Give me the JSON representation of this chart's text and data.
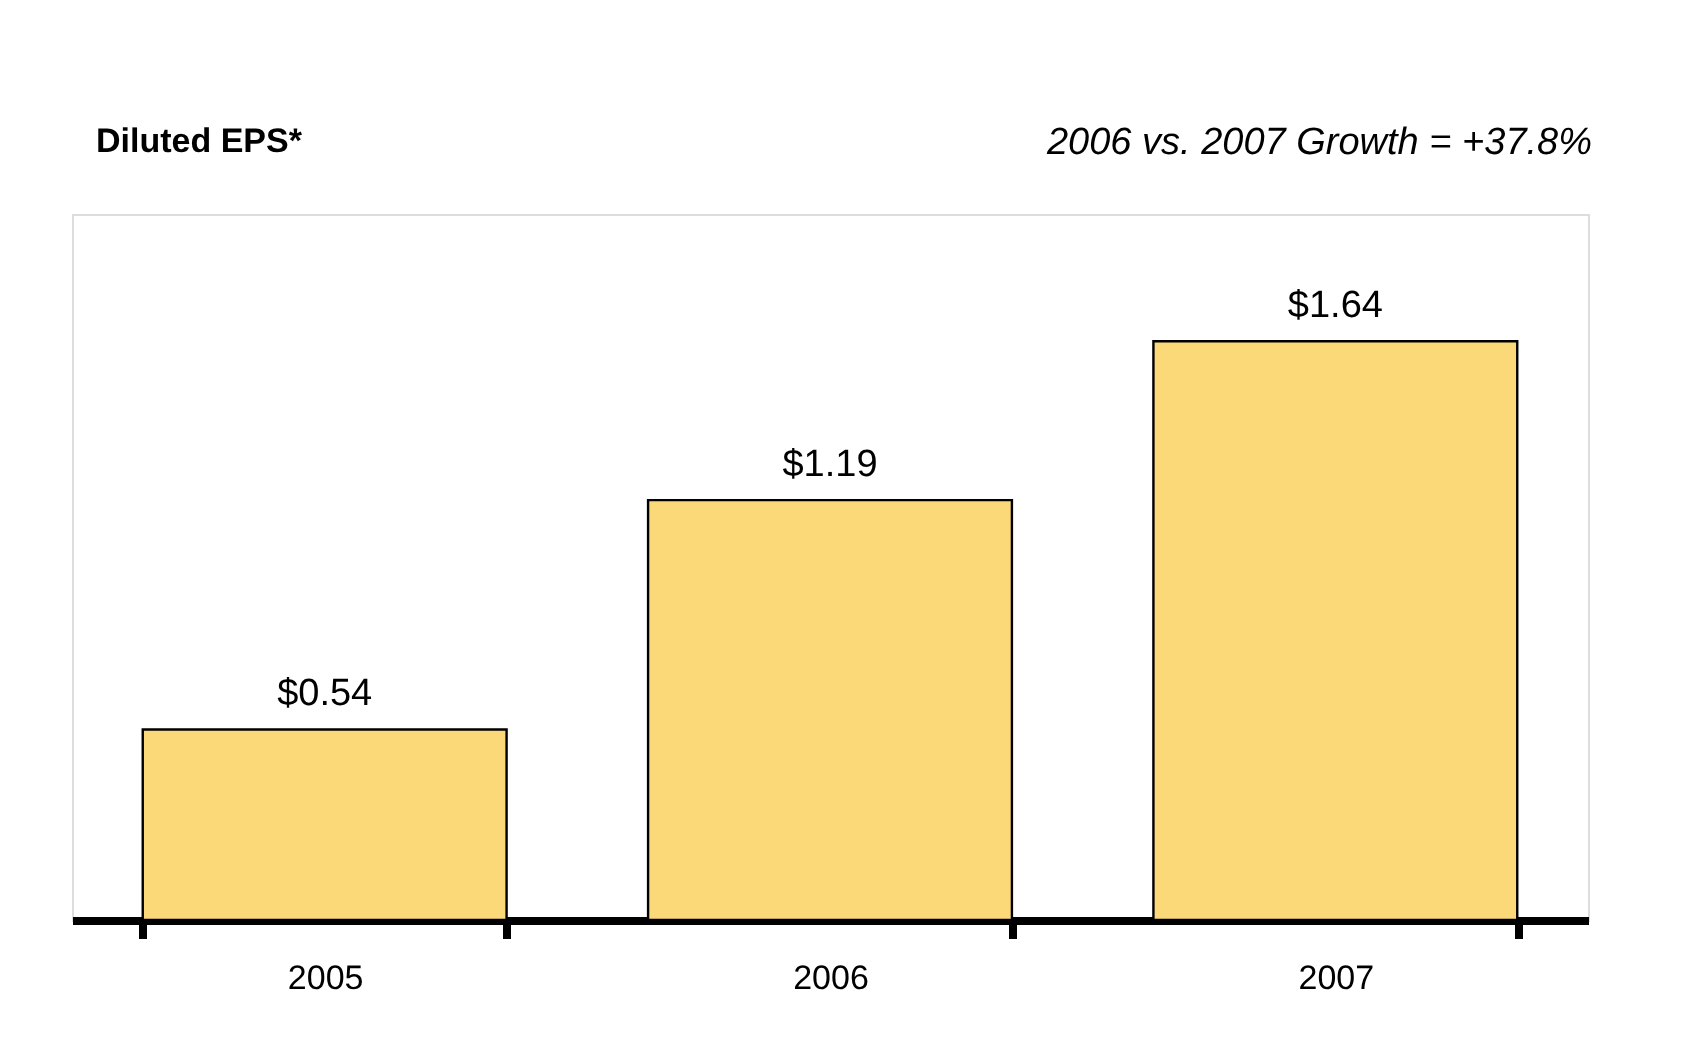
{
  "chart_data": {
    "type": "bar",
    "title": "Diluted EPS*",
    "annotations": [
      "2006 vs. 2007 Growth = +37.8%"
    ],
    "categories": [
      "2005",
      "2006",
      "2007"
    ],
    "values": [
      0.54,
      1.19,
      1.64
    ],
    "value_labels": [
      "$0.54",
      "$1.19",
      "$1.64"
    ],
    "color": "#fbd878",
    "tick_labels": "x",
    "grid": false
  }
}
